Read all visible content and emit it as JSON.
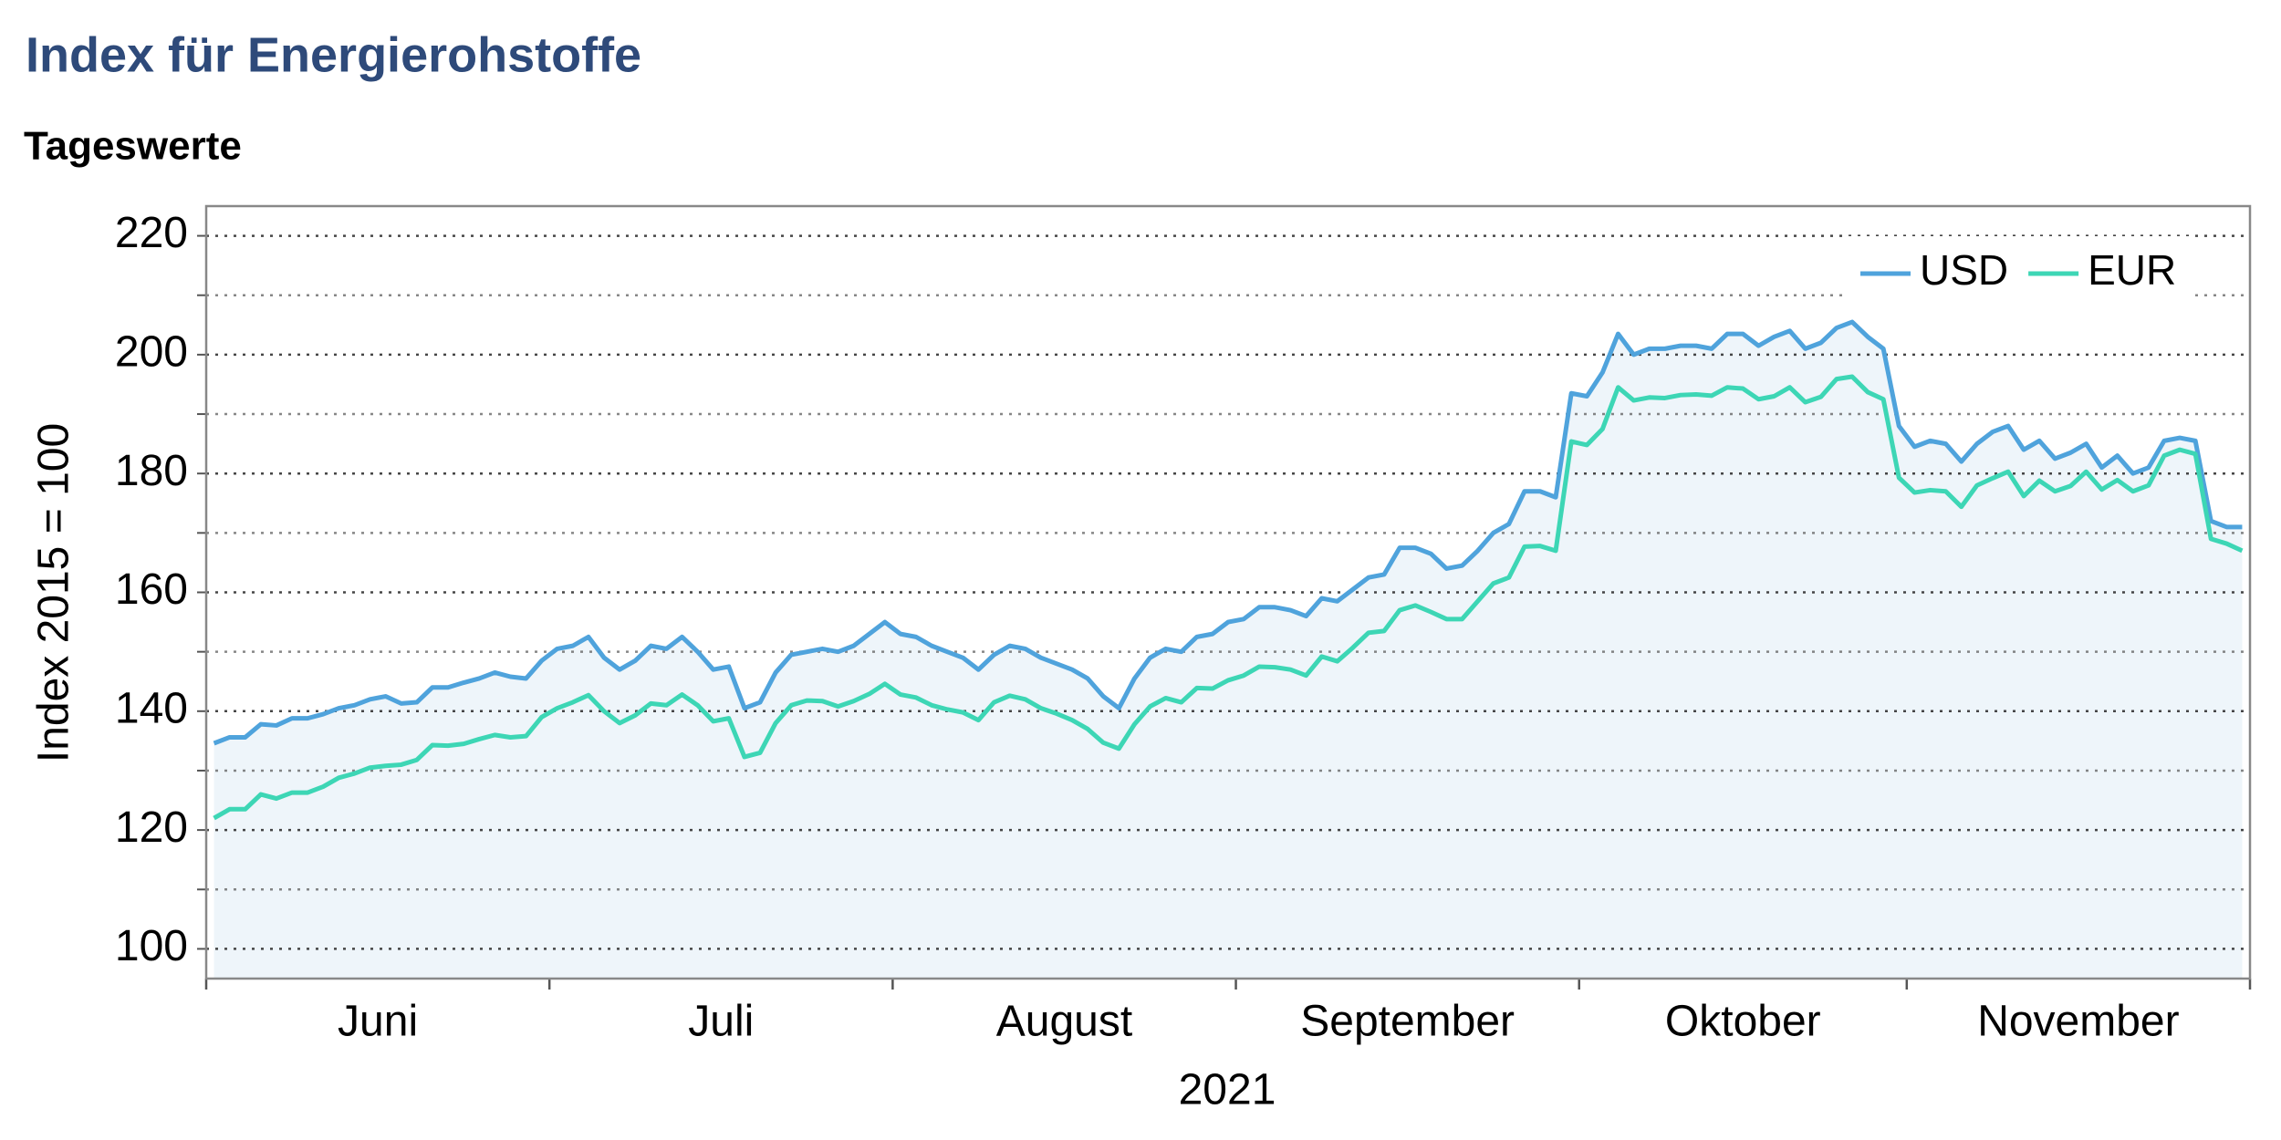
{
  "chart_data": {
    "type": "line",
    "title": "Index für Energierohstoffe",
    "subtitle": "Tageswerte",
    "ylabel": "Index 2015 = 100",
    "xlabel": "2021",
    "categories": [
      "Juni",
      "Juni",
      "Juni",
      "Juni",
      "Juni",
      "Juni",
      "Juni",
      "Juni",
      "Juni",
      "Juni",
      "Juni",
      "Juni",
      "Juni",
      "Juni",
      "Juni",
      "Juni",
      "Juni",
      "Juni",
      "Juni",
      "Juni",
      "Juni",
      "Juni",
      "Juli",
      "Juli",
      "Juli",
      "Juli",
      "Juli",
      "Juli",
      "Juli",
      "Juli",
      "Juli",
      "Juli",
      "Juli",
      "Juli",
      "Juli",
      "Juli",
      "Juli",
      "Juli",
      "Juli",
      "Juli",
      "Juli",
      "Juli",
      "Juli",
      "Juli",
      "August",
      "August",
      "August",
      "August",
      "August",
      "August",
      "August",
      "August",
      "August",
      "August",
      "August",
      "August",
      "August",
      "August",
      "August",
      "August",
      "August",
      "August",
      "August",
      "August",
      "August",
      "August",
      "September",
      "September",
      "September",
      "September",
      "September",
      "September",
      "September",
      "September",
      "September",
      "September",
      "September",
      "September",
      "September",
      "September",
      "September",
      "September",
      "September",
      "September",
      "September",
      "September",
      "September",
      "September",
      "Oktober",
      "Oktober",
      "Oktober",
      "Oktober",
      "Oktober",
      "Oktober",
      "Oktober",
      "Oktober",
      "Oktober",
      "Oktober",
      "Oktober",
      "Oktober",
      "Oktober",
      "Oktober",
      "Oktober",
      "Oktober",
      "Oktober",
      "Oktober",
      "Oktober",
      "Oktober",
      "Oktober",
      "November",
      "November",
      "November",
      "November",
      "November",
      "November",
      "November",
      "November",
      "November",
      "November",
      "November",
      "November",
      "November",
      "November",
      "November",
      "November",
      "November",
      "November",
      "November",
      "November",
      "November",
      "November"
    ],
    "series": [
      {
        "name": "USD",
        "color": "#4fa3dc",
        "values": [
          134.6,
          135.6,
          135.6,
          137.8,
          137.6,
          138.8,
          138.8,
          139.5,
          140.5,
          141,
          142,
          142.5,
          141.3,
          141.5,
          144,
          144,
          144.8,
          145.5,
          146.5,
          145.8,
          145.5,
          148.5,
          150.5,
          151,
          152.5,
          149,
          147,
          148.5,
          151,
          150.5,
          152.5,
          150,
          147,
          147.5,
          140.5,
          141.5,
          146.5,
          149.5,
          150,
          150.5,
          150,
          151,
          153,
          155,
          153,
          152.5,
          151,
          150,
          149,
          147,
          149.5,
          151,
          150.5,
          149,
          148,
          147,
          145.5,
          142.5,
          140.5,
          145.5,
          149,
          150.5,
          150,
          152.5,
          153,
          155,
          155.5,
          157.5,
          157.5,
          157,
          156,
          159,
          158.5,
          160.5,
          162.5,
          163,
          167.5,
          167.5,
          166.5,
          164,
          164.5,
          167,
          170,
          171.5,
          177,
          177,
          176,
          193.5,
          193,
          197,
          203.5,
          200,
          201,
          201,
          201.5,
          201.5,
          201,
          203.5,
          203.5,
          201.5,
          203,
          204,
          201,
          202,
          204.5,
          205.5,
          203,
          201,
          188,
          184.5,
          185.5,
          185,
          182,
          185,
          187,
          188,
          184,
          185.5,
          182.5,
          183.5,
          185,
          181,
          183,
          180,
          181,
          185.5,
          186,
          185.5,
          172,
          171,
          171
        ]
      },
      {
        "name": "EUR",
        "color": "#3dd6b5",
        "values": [
          122,
          123.5,
          123.5,
          126,
          125.3,
          126.3,
          126.3,
          127.3,
          128.8,
          129.5,
          130.5,
          130.8,
          131,
          131.8,
          134.3,
          134.2,
          134.5,
          135.3,
          136,
          135.6,
          135.8,
          139,
          140.5,
          141.5,
          142.7,
          140,
          138,
          139.3,
          141.3,
          141,
          142.8,
          141,
          138.3,
          138.8,
          132.3,
          133,
          138,
          141,
          141.8,
          141.7,
          140.8,
          141.7,
          142.9,
          144.6,
          142.8,
          142.3,
          141,
          140.3,
          139.8,
          138.5,
          141.5,
          142.6,
          142,
          140.5,
          139.6,
          138.5,
          137,
          134.7,
          133.7,
          137.8,
          140.8,
          142.2,
          141.5,
          143.9,
          143.8,
          145.2,
          146,
          147.5,
          147.4,
          147,
          146,
          149.2,
          148.4,
          150.7,
          153.2,
          153.5,
          157,
          157.8,
          156.7,
          155.5,
          155.5,
          158.5,
          161.5,
          162.5,
          167.7,
          167.8,
          167,
          185.4,
          184.8,
          187.5,
          194.5,
          192.3,
          192.8,
          192.7,
          193.2,
          193.3,
          193.1,
          194.5,
          194.3,
          192.5,
          193,
          194.5,
          192,
          192.9,
          195.9,
          196.3,
          193.7,
          192.5,
          179.3,
          176.8,
          177.2,
          177,
          174.4,
          178,
          179.2,
          180.3,
          176.2,
          178.8,
          177,
          177.9,
          180.3,
          177.3,
          178.9,
          177,
          178,
          183,
          184,
          183.3,
          169,
          168.2,
          167
        ]
      }
    ],
    "area_color": "#eef5fa",
    "ylim": [
      95,
      225
    ],
    "yticks": [
      100,
      120,
      140,
      160,
      180,
      200,
      220
    ],
    "minor_yticks": [
      110,
      130,
      150,
      170,
      190,
      210
    ],
    "grid": true,
    "legend": "upper right"
  }
}
